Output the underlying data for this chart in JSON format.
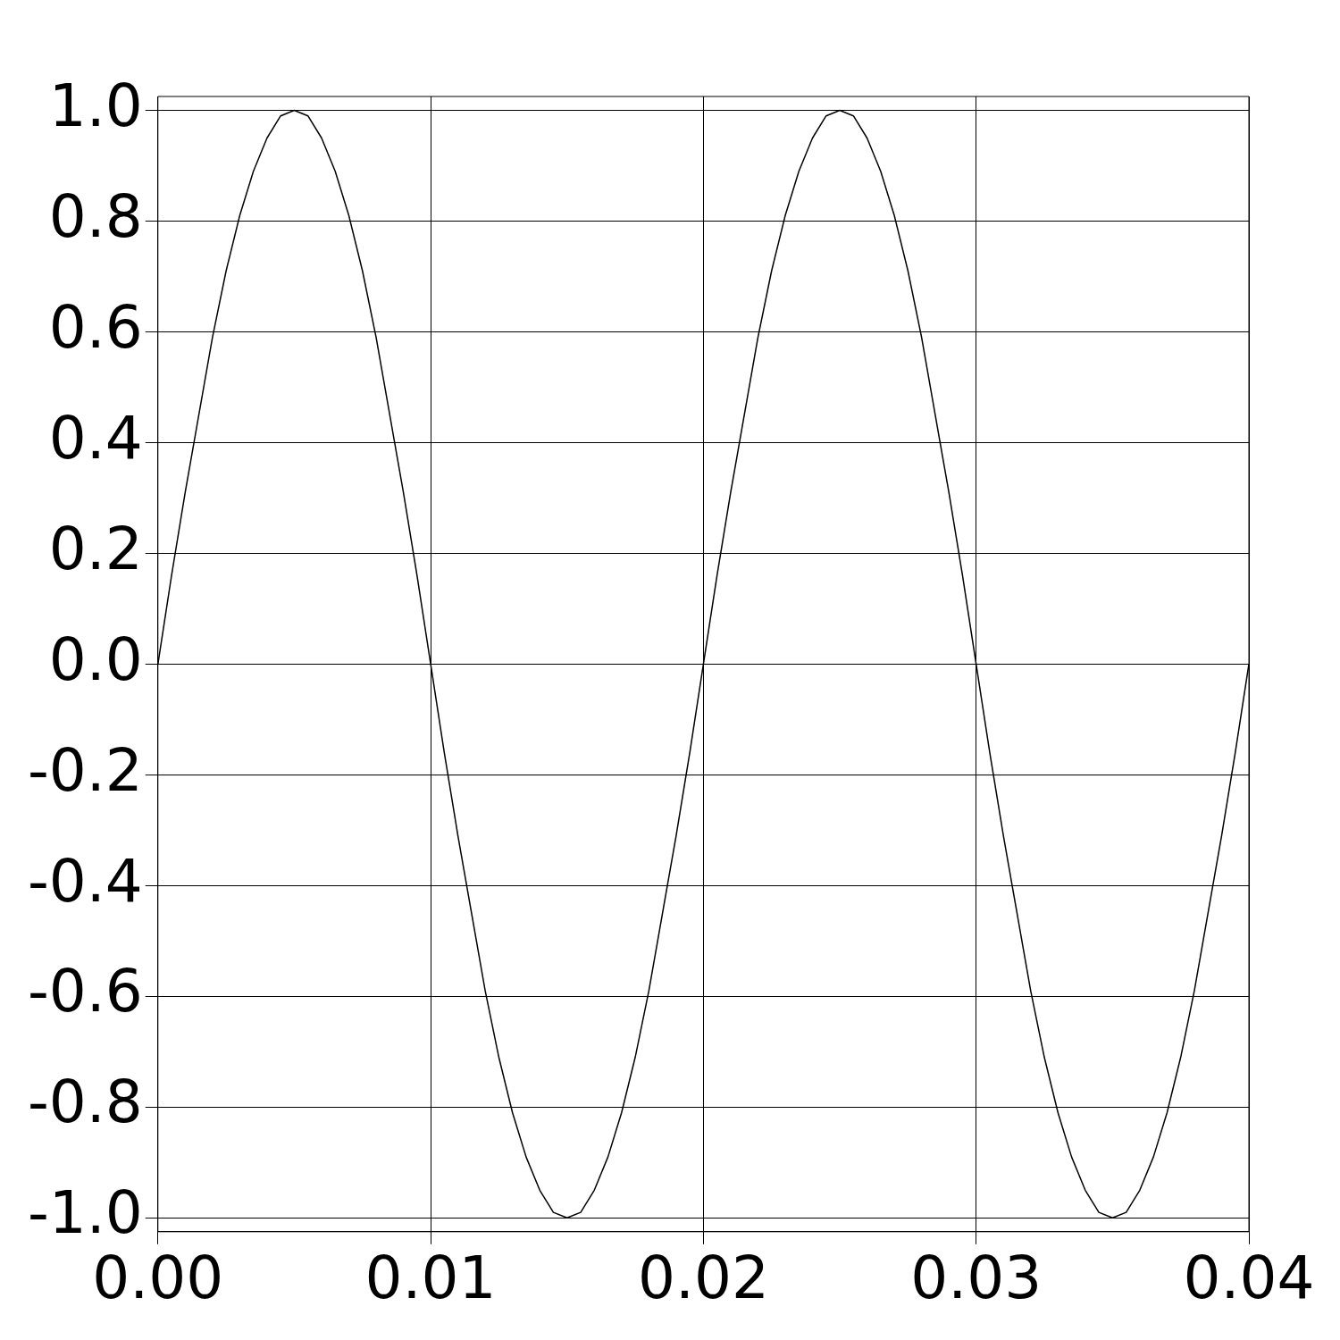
{
  "chart_data": {
    "type": "line",
    "x": [
      0,
      0.0005,
      0.001,
      0.0015,
      0.002,
      0.0025,
      0.003,
      0.0035,
      0.004,
      0.0045,
      0.005,
      0.0055,
      0.006,
      0.0065,
      0.007,
      0.0075,
      0.008,
      0.0085,
      0.009,
      0.0095,
      0.01,
      0.0105,
      0.011,
      0.0115,
      0.012,
      0.0125,
      0.013,
      0.0135,
      0.014,
      0.0145,
      0.015,
      0.0155,
      0.016,
      0.0165,
      0.017,
      0.0175,
      0.018,
      0.0185,
      0.019,
      0.0195,
      0.02,
      0.0205,
      0.021,
      0.0215,
      0.022,
      0.0225,
      0.023,
      0.0235,
      0.024,
      0.0245,
      0.025,
      0.0255,
      0.026,
      0.0265,
      0.027,
      0.0275,
      0.028,
      0.0285,
      0.029,
      0.0295,
      0.03,
      0.0305,
      0.031,
      0.0315,
      0.032,
      0.0325,
      0.033,
      0.0335,
      0.034,
      0.0345,
      0.035,
      0.0355,
      0.036,
      0.0365,
      0.037,
      0.0375,
      0.038,
      0.0385,
      0.039,
      0.0395,
      0.04
    ],
    "series": [
      {
        "color": "#000000",
        "values": [
          0,
          0.16,
          0.31,
          0.45,
          0.59,
          0.71,
          0.81,
          0.89,
          0.95,
          0.99,
          1,
          0.99,
          0.95,
          0.89,
          0.81,
          0.71,
          0.59,
          0.45,
          0.31,
          0.16,
          0,
          -0.16,
          -0.31,
          -0.45,
          -0.59,
          -0.71,
          -0.81,
          -0.89,
          -0.95,
          -0.99,
          -1,
          -0.99,
          -0.95,
          -0.89,
          -0.81,
          -0.71,
          -0.59,
          -0.45,
          -0.31,
          -0.16,
          0,
          0.16,
          0.31,
          0.45,
          0.59,
          0.71,
          0.81,
          0.89,
          0.95,
          0.99,
          1,
          0.99,
          0.95,
          0.89,
          0.81,
          0.71,
          0.59,
          0.45,
          0.31,
          0.16,
          0,
          -0.16,
          -0.31,
          -0.45,
          -0.59,
          -0.71,
          -0.81,
          -0.89,
          -0.95,
          -0.99,
          -1,
          -0.99,
          -0.95,
          -0.89,
          -0.81,
          -0.71,
          -0.59,
          -0.45,
          -0.31,
          -0.16,
          0
        ]
      }
    ],
    "xlim": [
      0,
      0.04
    ],
    "xticks": [
      {
        "value": 0,
        "label": "0.00"
      },
      {
        "value": 0.01,
        "label": "0.01"
      },
      {
        "value": 0.02,
        "label": "0.02"
      },
      {
        "value": 0.03,
        "label": "0.03"
      },
      {
        "value": 0.04,
        "label": "0.04"
      }
    ],
    "ylim": [
      -1.025,
      1.025
    ],
    "yticks": [
      {
        "value": -1,
        "label": "-1.0"
      },
      {
        "value": -0.8,
        "label": "-0.8"
      },
      {
        "value": -0.6,
        "label": "-0.6"
      },
      {
        "value": -0.4,
        "label": "-0.4"
      },
      {
        "value": -0.2,
        "label": "-0.2"
      },
      {
        "value": 0,
        "label": "0.0"
      },
      {
        "value": 0.2,
        "label": "0.2"
      },
      {
        "value": 0.4,
        "label": "0.4"
      },
      {
        "value": 0.6,
        "label": "0.6"
      },
      {
        "value": 0.8,
        "label": "0.8"
      },
      {
        "value": 1,
        "label": "1.0"
      }
    ],
    "grid": true,
    "legend": false,
    "marker": "none",
    "line_style": "solid"
  }
}
